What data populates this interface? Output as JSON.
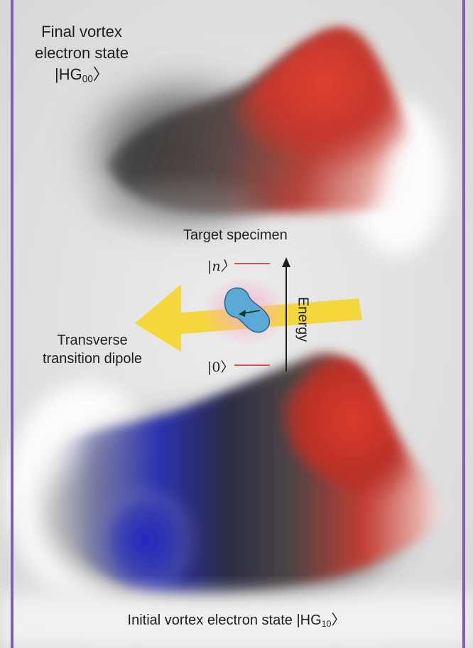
{
  "final_state": {
    "line1": "Final vortex",
    "line2": "electron state",
    "ket_open": "|HG",
    "ket_sub": "00",
    "ket_close": "〉"
  },
  "target": {
    "label": "Target specimen"
  },
  "levels": {
    "upper": "|n〉",
    "lower": "|0〉"
  },
  "energy_label": "Energy",
  "dipole": {
    "line1": "Transverse",
    "line2": "transition dipole"
  },
  "initial_state": {
    "text": "Initial vortex electron state |HG",
    "ket_sub": "10",
    "ket_close": "〉"
  },
  "colors": {
    "border": "#7d5fb3",
    "peak_red": "#d63a2e",
    "trough_blue": "#2a2fb5",
    "arrow_yellow": "#f6d21e",
    "molecule_blue": "#5aa9d6",
    "level_line": "#d9534f"
  }
}
